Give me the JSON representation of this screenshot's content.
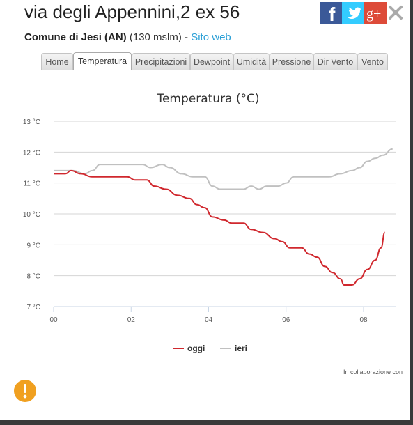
{
  "header": {
    "title": "via degli Appennini,2 ex 56",
    "comune": "Comune di Jesi (AN)",
    "altitude": "(130 mslm)",
    "separator": " - ",
    "site_link": "Sito web"
  },
  "social": {
    "facebook": "f",
    "googleplus": "g+"
  },
  "tabs": [
    {
      "label": "Home",
      "active": false
    },
    {
      "label": "Temperatura",
      "active": true
    },
    {
      "label": "Precipitazioni",
      "active": false
    },
    {
      "label": "Dewpoint",
      "active": false
    },
    {
      "label": "Umidità",
      "active": false
    },
    {
      "label": "Pressione",
      "active": false
    },
    {
      "label": "Dir Vento",
      "active": false
    },
    {
      "label": "Vento",
      "active": false
    }
  ],
  "footer": {
    "collab": "In collaborazione con"
  },
  "icons": {
    "close": "close-icon",
    "warning": "warning-icon"
  },
  "colors": {
    "oggi": "#d0282e",
    "ieri": "#c0c0c0",
    "facebook": "#3b5998",
    "twitter": "#33ccff",
    "googleplus": "#dd4b39",
    "link": "#2a9fd6",
    "warning": "#f0a020"
  },
  "chart_data": {
    "type": "line",
    "title": "Temperatura (°C)",
    "xlabel": "",
    "ylabel": "",
    "x_ticks": [
      "00",
      "02",
      "04",
      "06",
      "08"
    ],
    "x_range_hours": [
      0,
      8.83
    ],
    "y_ticks": [
      "7 °C",
      "8 °C",
      "9 °C",
      "10 °C",
      "11 °C",
      "12 °C",
      "13 °C"
    ],
    "ylim": [
      7,
      13
    ],
    "grid": true,
    "legend_position": "bottom-center",
    "series": [
      {
        "name": "oggi",
        "color": "#d0282e",
        "points": [
          [
            0,
            11.3
          ],
          [
            0.3,
            11.3
          ],
          [
            0.45,
            11.4
          ],
          [
            0.7,
            11.3
          ],
          [
            1,
            11.2
          ],
          [
            1.5,
            11.2
          ],
          [
            1.9,
            11.2
          ],
          [
            2.1,
            11.1
          ],
          [
            2.4,
            11.1
          ],
          [
            2.6,
            10.9
          ],
          [
            2.9,
            10.8
          ],
          [
            3.2,
            10.6
          ],
          [
            3.5,
            10.5
          ],
          [
            3.7,
            10.3
          ],
          [
            3.9,
            10.2
          ],
          [
            4.1,
            9.9
          ],
          [
            4.4,
            9.8
          ],
          [
            4.6,
            9.7
          ],
          [
            4.9,
            9.7
          ],
          [
            5.1,
            9.5
          ],
          [
            5.4,
            9.4
          ],
          [
            5.7,
            9.2
          ],
          [
            5.9,
            9.1
          ],
          [
            6.1,
            8.9
          ],
          [
            6.4,
            8.9
          ],
          [
            6.6,
            8.7
          ],
          [
            6.8,
            8.6
          ],
          [
            7,
            8.3
          ],
          [
            7.2,
            8.1
          ],
          [
            7.4,
            7.9
          ],
          [
            7.5,
            7.7
          ],
          [
            7.7,
            7.7
          ],
          [
            7.9,
            7.9
          ],
          [
            8.1,
            8.2
          ],
          [
            8.3,
            8.5
          ],
          [
            8.45,
            8.9
          ],
          [
            8.55,
            9.4
          ]
        ]
      },
      {
        "name": "ieri",
        "color": "#c0c0c0",
        "points": [
          [
            0,
            11.4
          ],
          [
            0.3,
            11.4
          ],
          [
            0.5,
            11.4
          ],
          [
            0.8,
            11.3
          ],
          [
            1,
            11.4
          ],
          [
            1.2,
            11.6
          ],
          [
            1.6,
            11.6
          ],
          [
            2,
            11.6
          ],
          [
            2.3,
            11.6
          ],
          [
            2.5,
            11.5
          ],
          [
            2.8,
            11.6
          ],
          [
            3,
            11.5
          ],
          [
            3.3,
            11.3
          ],
          [
            3.6,
            11.2
          ],
          [
            3.9,
            11.2
          ],
          [
            4.1,
            10.9
          ],
          [
            4.3,
            10.8
          ],
          [
            4.6,
            10.8
          ],
          [
            4.9,
            10.8
          ],
          [
            5.1,
            10.9
          ],
          [
            5.3,
            10.8
          ],
          [
            5.5,
            10.9
          ],
          [
            5.8,
            10.9
          ],
          [
            6,
            11
          ],
          [
            6.2,
            11.2
          ],
          [
            6.5,
            11.2
          ],
          [
            6.8,
            11.2
          ],
          [
            7.1,
            11.2
          ],
          [
            7.4,
            11.3
          ],
          [
            7.7,
            11.4
          ],
          [
            7.9,
            11.5
          ],
          [
            8.1,
            11.7
          ],
          [
            8.3,
            11.8
          ],
          [
            8.5,
            11.9
          ],
          [
            8.75,
            12.1
          ]
        ]
      }
    ]
  }
}
